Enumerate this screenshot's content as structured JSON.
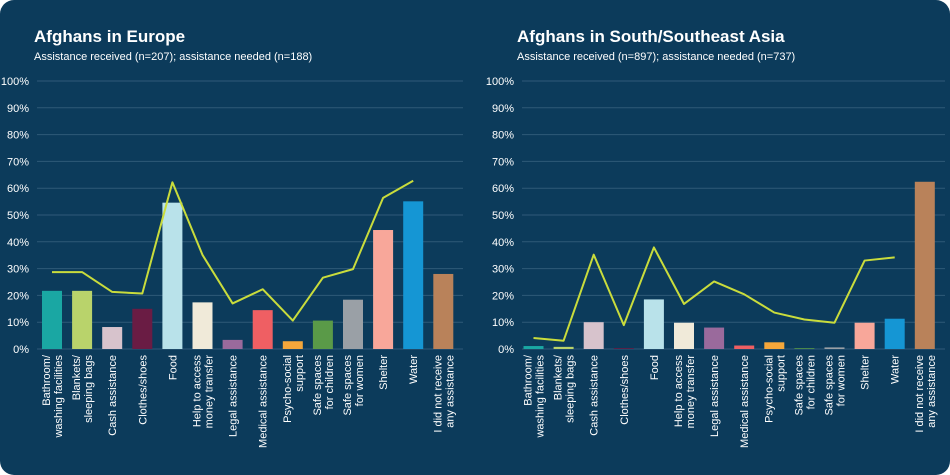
{
  "colors": {
    "background": "#0c3b5b",
    "grid": "#2f5a78",
    "axis_text": "#ffffff",
    "needed_line": "#c9dc3c"
  },
  "chart_data": [
    {
      "type": "bar",
      "title": "Afghans in Europe",
      "subtitle": "Assistance received (n=207); assistance needed (n=188)",
      "ylim": [
        0,
        100
      ],
      "yticks": [
        "0%",
        "10%",
        "20%",
        "30%",
        "40%",
        "50%",
        "60%",
        "70%",
        "80%",
        "90%",
        "100%"
      ],
      "grid": true,
      "categories": [
        [
          "Bathroom/",
          "washing facilities"
        ],
        [
          "Blankets/",
          "sleeping bags"
        ],
        [
          "Cash assistance"
        ],
        [
          "Clothes/shoes"
        ],
        [
          "Food"
        ],
        [
          "Help to access",
          "money transfer"
        ],
        [
          "Legal assistance"
        ],
        [
          "Medical assistance"
        ],
        [
          "Psycho-social",
          "support"
        ],
        [
          "Safe spaces",
          "for children"
        ],
        [
          "Safe spaces",
          "for women"
        ],
        [
          "Shelter"
        ],
        [
          "Water"
        ],
        [
          "I did not receive",
          "any assistance"
        ]
      ],
      "bar_colors": [
        "#1aa7a3",
        "#b9d36b",
        "#d7c3cc",
        "#6a1c44",
        "#b9e2ea",
        "#f0ead9",
        "#9a6a9c",
        "#ef5f63",
        "#f5a73b",
        "#5a9a48",
        "#9aa0a6",
        "#f8a79a",
        "#1596d4",
        "#b9825a"
      ],
      "series": [
        {
          "type": "bar",
          "values": [
            21.7,
            21.7,
            8.2,
            15.0,
            54.6,
            17.4,
            3.4,
            14.5,
            2.9,
            10.6,
            18.4,
            44.4,
            55.1,
            28.0
          ]
        },
        {
          "type": "line",
          "values": [
            28.7,
            28.7,
            21.3,
            20.7,
            62.2,
            35.1,
            17.0,
            22.3,
            10.6,
            26.6,
            29.8,
            56.4,
            62.8,
            null
          ]
        }
      ]
    },
    {
      "type": "bar",
      "title": "Afghans in South/Southeast Asia",
      "subtitle": "Assistance received (n=897); assistance needed (n=737)",
      "ylim": [
        0,
        100
      ],
      "yticks": [
        "0%",
        "10%",
        "20%",
        "30%",
        "40%",
        "50%",
        "60%",
        "70%",
        "80%",
        "90%",
        "100%"
      ],
      "grid": true,
      "categories": [
        [
          "Bathroom/",
          "washing facilities"
        ],
        [
          "Blankets/",
          "sleeping bags"
        ],
        [
          "Cash assistance"
        ],
        [
          "Clothes/shoes"
        ],
        [
          "Food"
        ],
        [
          "Help to access",
          "money transfer"
        ],
        [
          "Legal assistance"
        ],
        [
          "Medical assistance"
        ],
        [
          "Psycho-social",
          "support"
        ],
        [
          "Safe spaces",
          "for children"
        ],
        [
          "Safe spaces",
          "for women"
        ],
        [
          "Shelter"
        ],
        [
          "Water"
        ],
        [
          "I did not receive",
          "any assistance"
        ]
      ],
      "bar_colors": [
        "#1aa7a3",
        "#b9d36b",
        "#d7c3cc",
        "#6a1c44",
        "#b9e2ea",
        "#f0ead9",
        "#9a6a9c",
        "#ef5f63",
        "#f5a73b",
        "#5a9a48",
        "#9aa0a6",
        "#f8a79a",
        "#1596d4",
        "#b9825a"
      ],
      "series": [
        {
          "type": "bar",
          "values": [
            1.1,
            0.8,
            10.0,
            0.3,
            18.5,
            9.8,
            8.0,
            1.3,
            2.5,
            0.3,
            0.6,
            9.8,
            11.3,
            62.4
          ]
        },
        {
          "type": "line",
          "values": [
            4.1,
            3.1,
            35.2,
            8.9,
            37.9,
            16.8,
            25.2,
            20.4,
            13.6,
            11.0,
            9.8,
            33.0,
            34.2,
            null
          ]
        }
      ]
    }
  ]
}
